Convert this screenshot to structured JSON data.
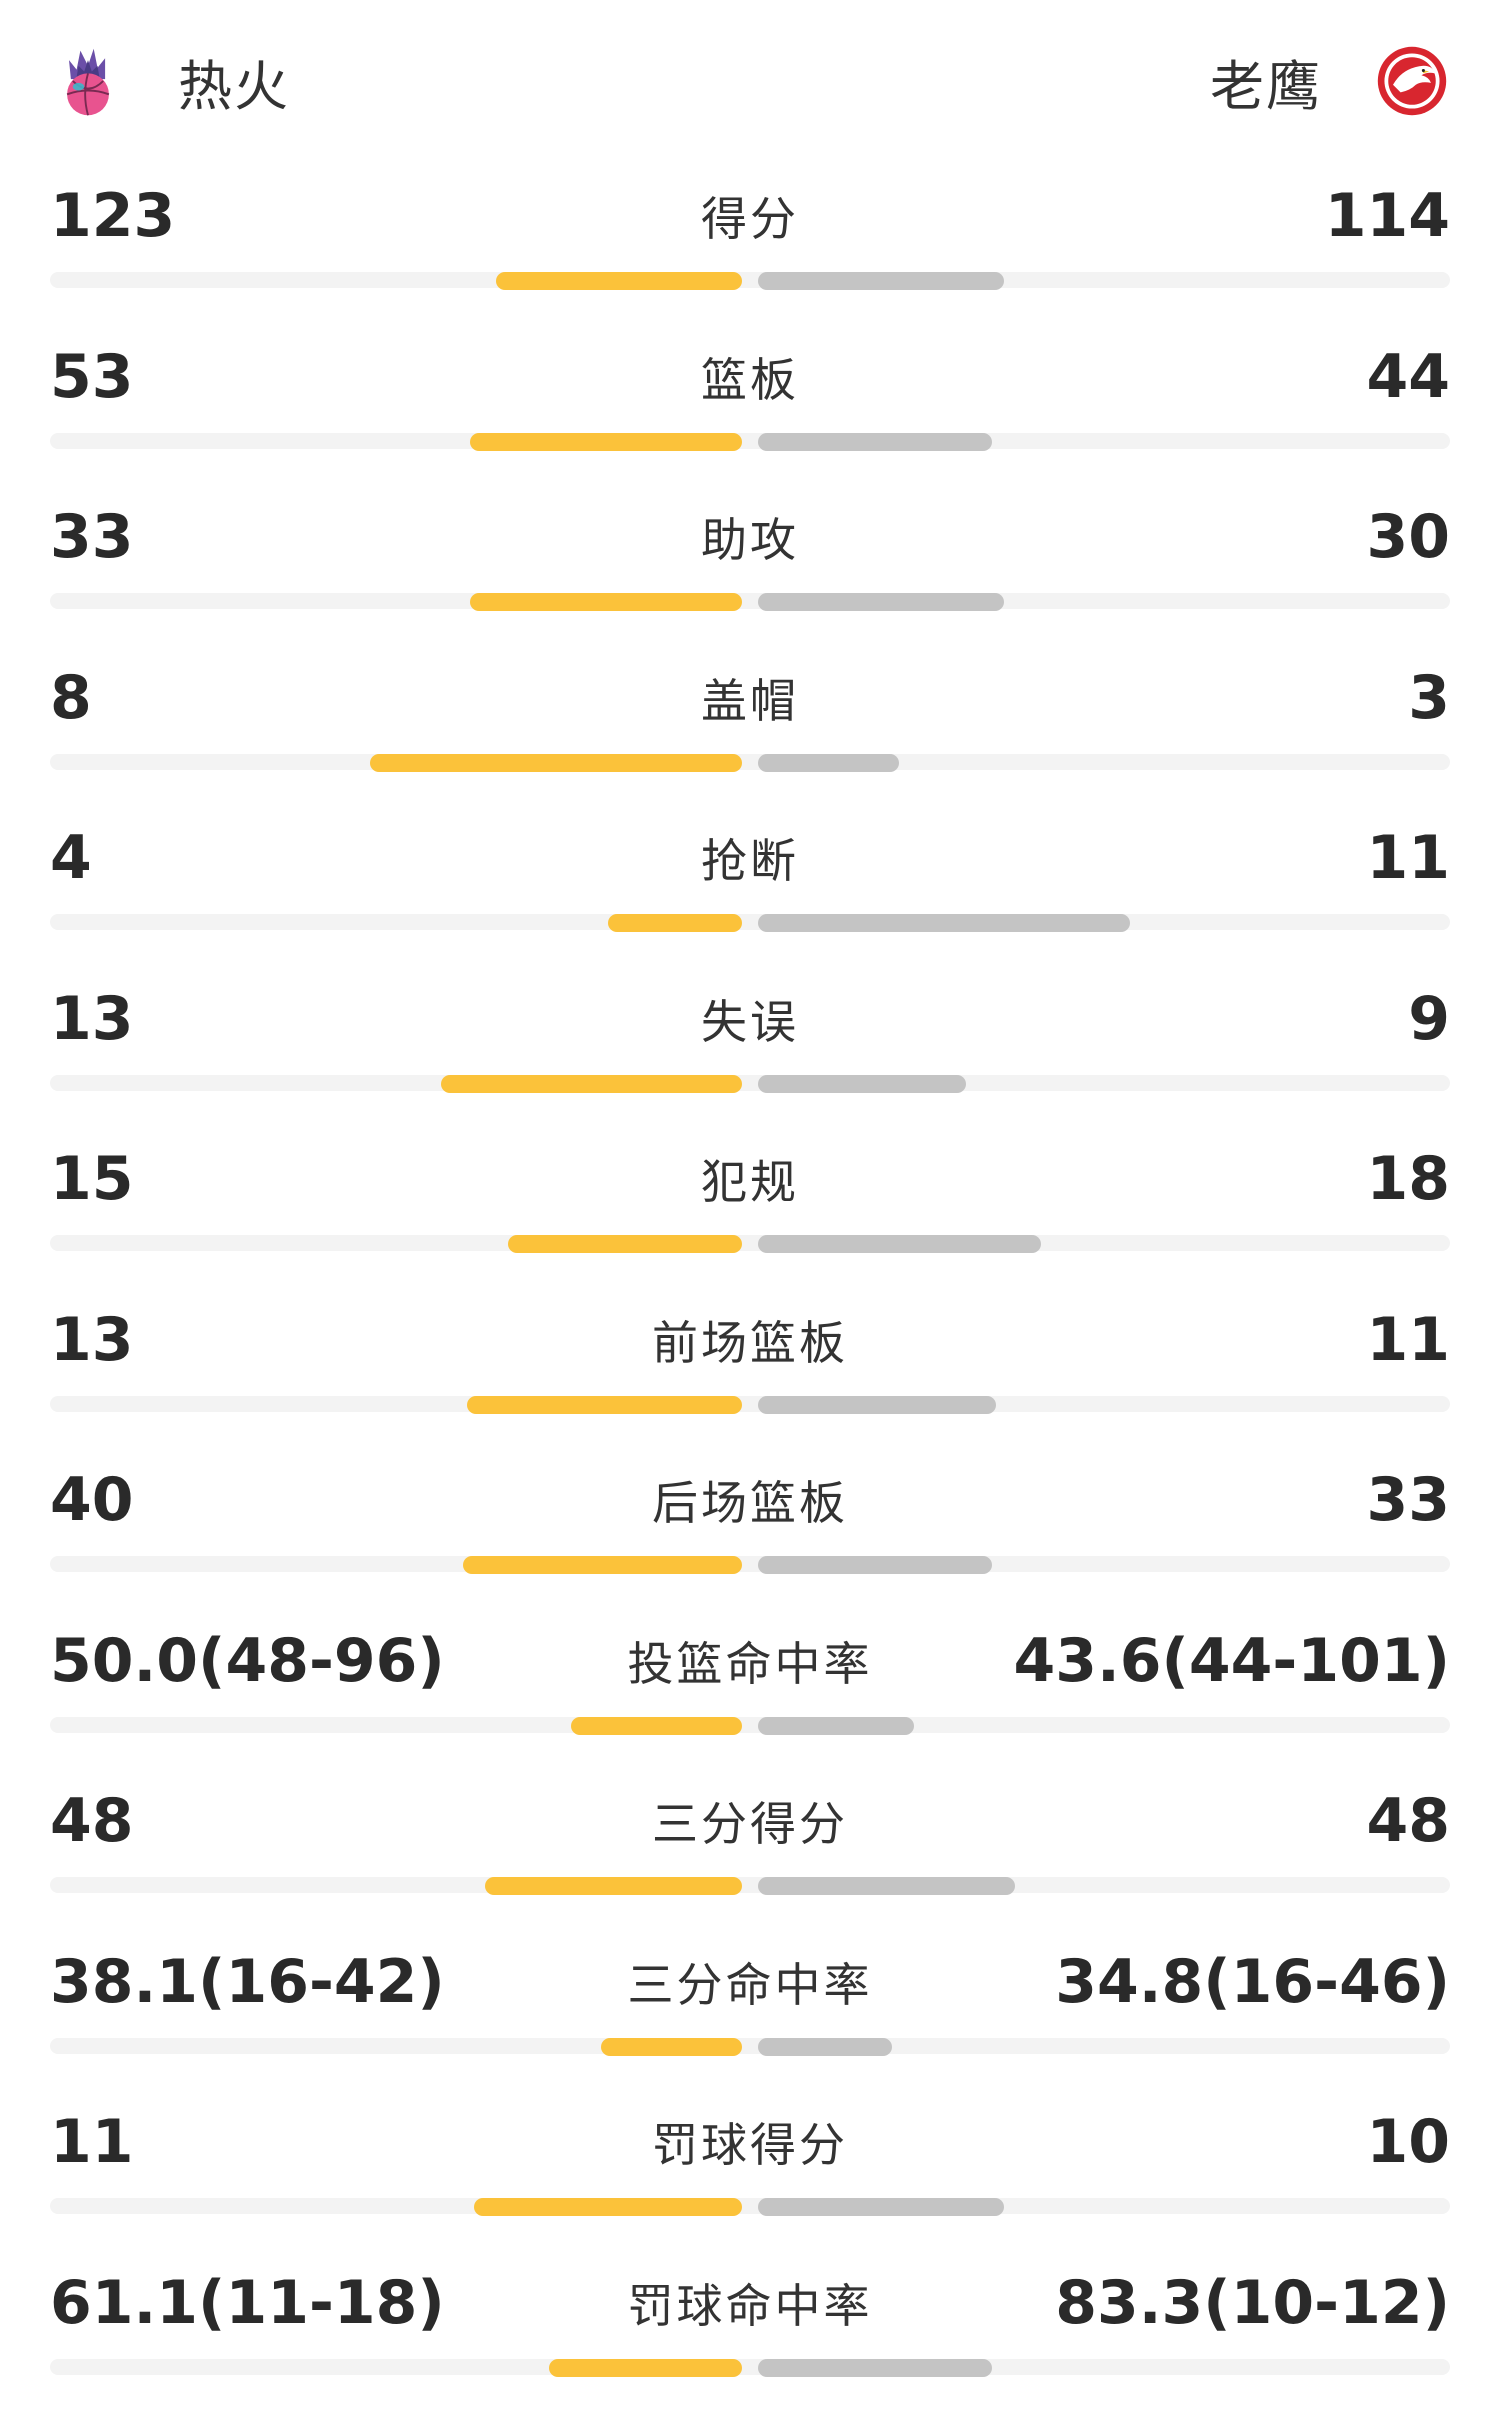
{
  "teams": {
    "home": {
      "name": "热火",
      "logo": "heat-logo-icon"
    },
    "away": {
      "name": "老鹰",
      "logo": "hawks-logo-icon"
    }
  },
  "colors": {
    "home_bar": "#fbc23a",
    "away_bar": "#c4c4c4",
    "track": "#f3f3f3"
  },
  "stats": [
    {
      "label": "得分",
      "left": "123",
      "right": "114",
      "left_fill": 0.66,
      "right_fill": 0.66
    },
    {
      "label": "篮板",
      "left": "53",
      "right": "44",
      "left_fill": 0.73,
      "right_fill": 0.63
    },
    {
      "label": "助攻",
      "left": "33",
      "right": "30",
      "left_fill": 0.73,
      "right_fill": 0.66
    },
    {
      "label": "盖帽",
      "left": "8",
      "right": "3",
      "left_fill": 1.0,
      "right_fill": 0.38
    },
    {
      "label": "抢断",
      "left": "4",
      "right": "11",
      "left_fill": 0.36,
      "right_fill": 1.0
    },
    {
      "label": "失误",
      "left": "13",
      "right": "9",
      "left_fill": 0.81,
      "right_fill": 0.56
    },
    {
      "label": "犯规",
      "left": "15",
      "right": "18",
      "left_fill": 0.63,
      "right_fill": 0.76
    },
    {
      "label": "前场篮板",
      "left": "13",
      "right": "11",
      "left_fill": 0.74,
      "right_fill": 0.64
    },
    {
      "label": "后场篮板",
      "left": "40",
      "right": "33",
      "left_fill": 0.75,
      "right_fill": 0.63
    },
    {
      "label": "投篮命中率",
      "left": "50.0(48-96)",
      "right": "43.6(44-101)",
      "left_fill": 0.46,
      "right_fill": 0.42
    },
    {
      "label": "三分得分",
      "left": "48",
      "right": "48",
      "left_fill": 0.69,
      "right_fill": 0.69
    },
    {
      "label": "三分命中率",
      "left": "38.1(16-42)",
      "right": "34.8(16-46)",
      "left_fill": 0.38,
      "right_fill": 0.36
    },
    {
      "label": "罚球得分",
      "left": "11",
      "right": "10",
      "left_fill": 0.72,
      "right_fill": 0.66
    },
    {
      "label": "罚球命中率",
      "left": "61.1(11-18)",
      "right": "83.3(10-12)",
      "left_fill": 0.52,
      "right_fill": 0.63
    }
  ]
}
